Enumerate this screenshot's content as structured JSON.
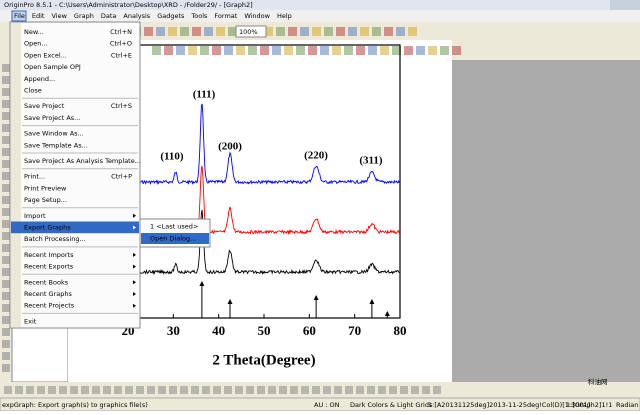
{
  "window": {
    "title": "OriginPro 8.5.1 - C:\\Users\\Administrator\\Desktop\\XRD - /Folder29/ - [Graph2]"
  },
  "menu_bar": [
    "File",
    "Edit",
    "View",
    "Graph",
    "Data",
    "Analysis",
    "Gadgets",
    "Tools",
    "Format",
    "Window",
    "Help"
  ],
  "toolbar": {
    "zoom": "100%"
  },
  "file_menu": {
    "groups": [
      [
        {
          "label": "New...",
          "shortcut": "Ctrl+N"
        },
        {
          "label": "Open...",
          "shortcut": "Ctrl+O"
        },
        {
          "label": "Open Excel...",
          "shortcut": "Ctrl+E"
        },
        {
          "label": "Open Sample OPJ"
        },
        {
          "label": "Append..."
        },
        {
          "label": "Close"
        }
      ],
      [
        {
          "label": "Save Project",
          "shortcut": "Ctrl+S"
        },
        {
          "label": "Save Project As..."
        }
      ],
      [
        {
          "label": "Save Window As..."
        },
        {
          "label": "Save Template As..."
        }
      ],
      [
        {
          "label": "Save Project As Analysis Template...",
          "disabled": true
        }
      ],
      [
        {
          "label": "Print...",
          "shortcut": "Ctrl+P"
        },
        {
          "label": "Print Preview"
        },
        {
          "label": "Page Setup..."
        }
      ],
      [
        {
          "label": "Import",
          "has_submenu": true
        },
        {
          "label": "Export Graphs",
          "has_submenu": true,
          "highlighted": true
        },
        {
          "label": "Batch Processing..."
        }
      ],
      [
        {
          "label": "Recent Imports",
          "has_submenu": true
        },
        {
          "label": "Recent Exports",
          "has_submenu": true
        }
      ],
      [
        {
          "label": "Recent Books",
          "has_submenu": true
        },
        {
          "label": "Recent Graphs",
          "has_submenu": true
        },
        {
          "label": "Recent Projects",
          "has_submenu": true
        }
      ],
      [
        {
          "label": "Exit"
        }
      ]
    ]
  },
  "submenu": [
    {
      "label": "1 <Last used>"
    },
    {
      "label": "Open Dialog...",
      "highlighted": true
    }
  ],
  "graph": {
    "x_label": "2 Theta(Degree)",
    "x_ticks": [
      "20",
      "30",
      "40",
      "50",
      "60",
      "70",
      "80"
    ],
    "peak_labels": [
      "(110)",
      "(111)",
      "(200)",
      "(220)",
      "(311)"
    ]
  },
  "status_bar": [
    "expGraph: Export graph(s) to graphics file(s)",
    "AU : ON",
    "Dark Colors & Light Grids",
    "1:[A20131125deg]2013-11-25deg!Col(D)[1:3001]",
    "1:[Graph2]1!1",
    "Radian"
  ],
  "watermark": "科油网"
}
